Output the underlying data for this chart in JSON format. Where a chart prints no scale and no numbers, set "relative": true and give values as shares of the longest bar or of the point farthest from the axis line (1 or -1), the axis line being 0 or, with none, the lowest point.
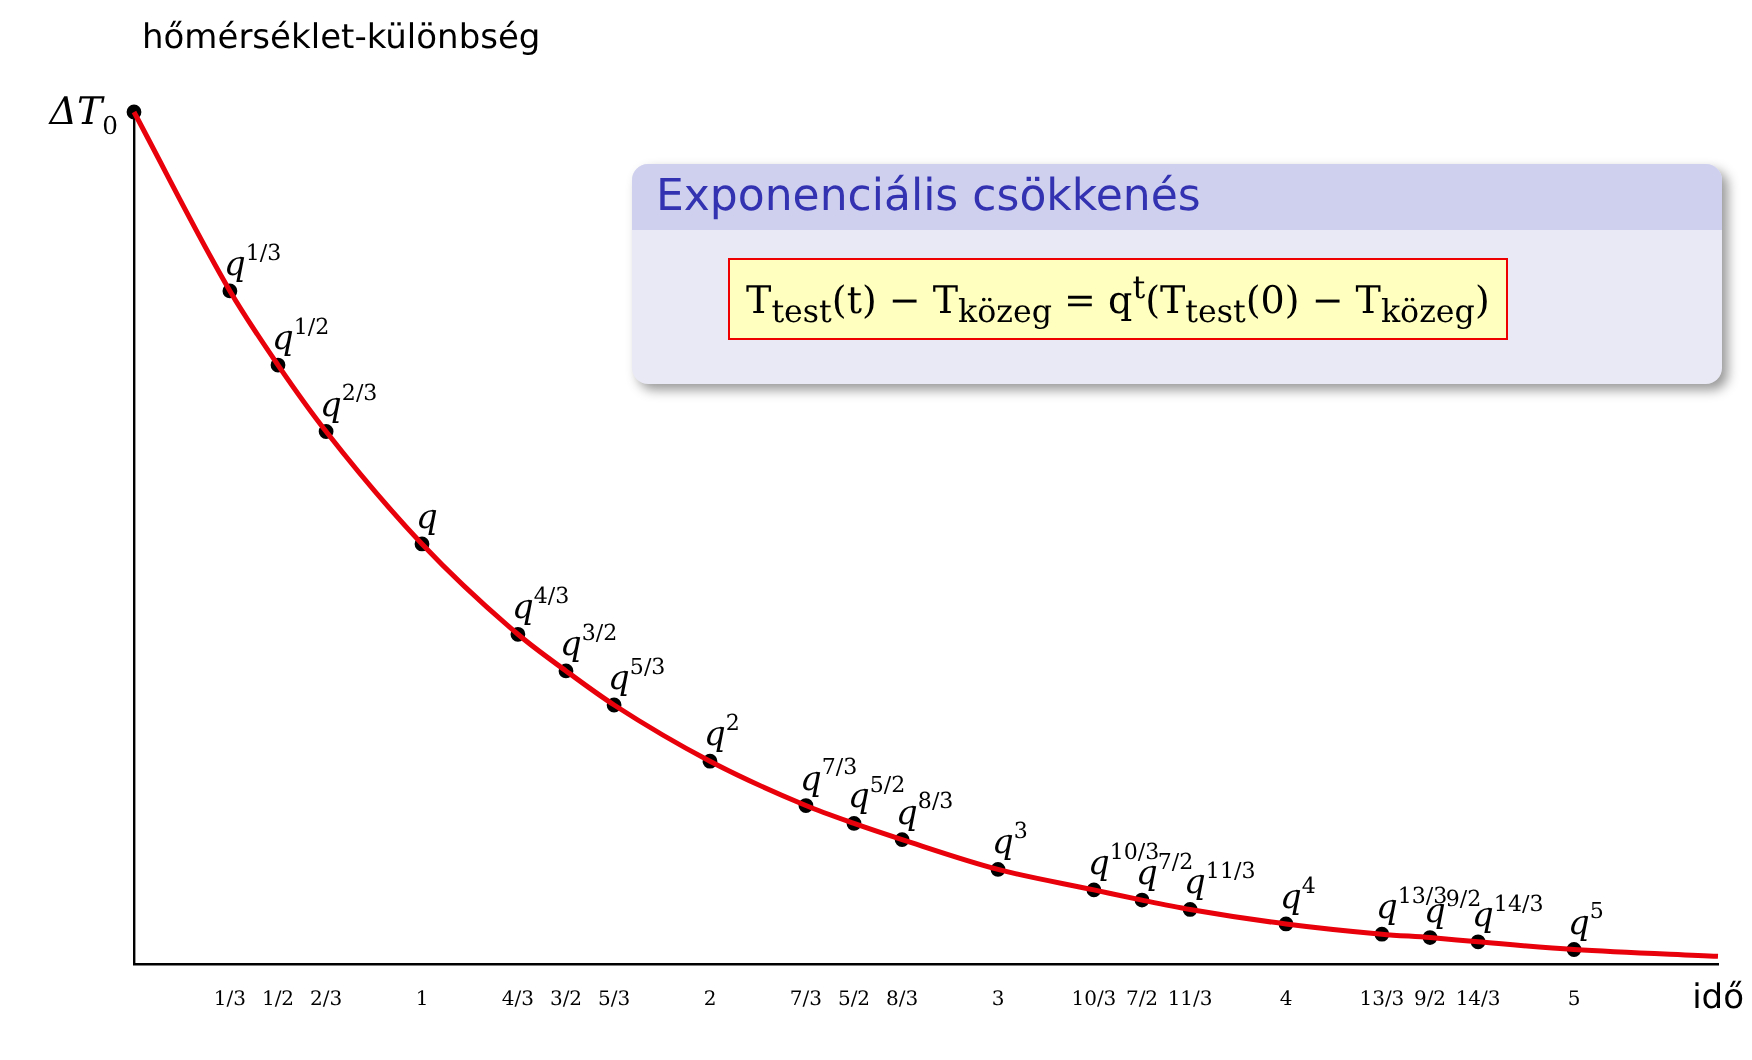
{
  "chart_data": {
    "type": "line",
    "xlabel": "idő",
    "ylabel": "hőmérséklet-különbség",
    "xlim": [
      0,
      5.5
    ],
    "relative": true,
    "xticks": [
      {
        "value": 0.333,
        "label": "1/3"
      },
      {
        "value": 0.5,
        "label": "1/2"
      },
      {
        "value": 0.667,
        "label": "2/3"
      },
      1,
      {
        "value": 1.333,
        "label": "4/3"
      },
      {
        "value": 1.5,
        "label": "3/2"
      },
      {
        "value": 1.667,
        "label": "5/3"
      },
      2,
      {
        "value": 2.333,
        "label": "7/3"
      },
      {
        "value": 2.5,
        "label": "5/2"
      },
      {
        "value": 2.667,
        "label": "8/3"
      },
      3,
      {
        "value": 3.333,
        "label": "10/3"
      },
      {
        "value": 3.5,
        "label": "7/2"
      },
      {
        "value": 3.667,
        "label": "11/3"
      },
      4,
      {
        "value": 4.333,
        "label": "13/3"
      },
      {
        "value": 4.5,
        "label": "9/2"
      },
      {
        "value": 4.667,
        "label": "14/3"
      },
      5
    ],
    "annotations": [
      {
        "text": "ΔT$_{0}$",
        "x": 0,
        "y": 1
      },
      "Exponenciális csökkenés",
      "T$_{test}$(t) − T$_{közeg}$ = q$^{t}$(T$_{test}$(0) − T$_{közeg}$)",
      {
        "text": "q$^{1/3}$",
        "x": 0.333,
        "y": 0.79
      },
      {
        "text": "q$^{1/2}$",
        "x": 0.5,
        "y": 0.703
      },
      {
        "text": "q$^{2/3}$",
        "x": 0.667,
        "y": 0.625
      },
      {
        "text": "q",
        "x": 1,
        "y": 0.493
      },
      {
        "text": "q$^{4/3}$",
        "x": 1.333,
        "y": 0.387
      },
      {
        "text": "q$^{3/2}$",
        "x": 1.5,
        "y": 0.344
      },
      {
        "text": "q$^{5/3}$",
        "x": 1.667,
        "y": 0.304
      },
      {
        "text": "q$^{2}$",
        "x": 2,
        "y": 0.238
      },
      {
        "text": "q$^{7/3}$",
        "x": 2.333,
        "y": 0.186
      },
      {
        "text": "q$^{5/2}$",
        "x": 2.5,
        "y": 0.165
      },
      {
        "text": "q$^{8/3}$",
        "x": 2.667,
        "y": 0.146
      },
      {
        "text": "q$^{3}$",
        "x": 3,
        "y": 0.111
      },
      {
        "text": "q$^{10/3}$",
        "x": 3.333,
        "y": 0.087
      },
      {
        "text": "q$^{7/2}$",
        "x": 3.5,
        "y": 0.075
      },
      {
        "text": "q$^{11/3}$",
        "x": 3.667,
        "y": 0.064
      },
      {
        "text": "q$^{4}$",
        "x": 4,
        "y": 0.047
      },
      {
        "text": "q$^{13/3}$",
        "x": 4.333,
        "y": 0.035
      },
      {
        "text": "q$^{9/2}$",
        "x": 4.5,
        "y": 0.031
      },
      {
        "text": "q$^{14/3}$",
        "x": 4.667,
        "y": 0.026
      },
      {
        "text": "q$^{5}$",
        "x": 5,
        "y": 0.017
      }
    ],
    "series": [
      {
        "color": "#e8000b",
        "marker": "none",
        "x": [
          0,
          0.333,
          0.5,
          0.667,
          1,
          1.333,
          1.5,
          1.667,
          2,
          2.333,
          2.5,
          2.667,
          3,
          3.333,
          3.5,
          3.667,
          4,
          4.333,
          4.5,
          4.667,
          5,
          5.5
        ],
        "values": [
          1,
          0.79,
          0.703,
          0.625,
          0.493,
          0.387,
          0.344,
          0.304,
          0.238,
          0.186,
          0.165,
          0.146,
          0.111,
          0.087,
          0.075,
          0.064,
          0.047,
          0.035,
          0.031,
          0.026,
          0.017,
          0.009
        ]
      },
      {
        "type": "scatter",
        "color": "#000000",
        "marker": "circle",
        "x": [
          0,
          0.333,
          0.5,
          0.667,
          1,
          1.333,
          1.5,
          1.667,
          2,
          2.333,
          2.5,
          2.667,
          3,
          3.333,
          3.5,
          3.667,
          4,
          4.333,
          4.5,
          4.667,
          5
        ],
        "values": [
          1,
          0.79,
          0.703,
          0.625,
          0.493,
          0.387,
          0.344,
          0.304,
          0.238,
          0.186,
          0.165,
          0.146,
          0.111,
          0.087,
          0.075,
          0.064,
          0.047,
          0.035,
          0.031,
          0.026,
          0.017
        ]
      }
    ]
  }
}
